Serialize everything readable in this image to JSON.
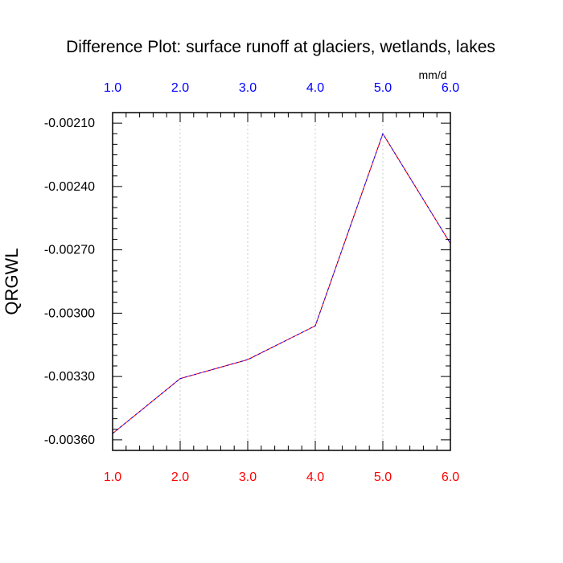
{
  "chart_data": {
    "type": "line",
    "title": "Difference Plot: surface runoff at glaciers, wetlands, lakes",
    "ylabel": "QRGWL",
    "units_label": "mm/d",
    "x": [
      1.0,
      2.0,
      3.0,
      4.0,
      5.0,
      6.0
    ],
    "series": [
      {
        "values": [
          -0.00357,
          -0.00331,
          -0.00322,
          -0.00306,
          -0.00215,
          -0.00267
        ]
      }
    ],
    "xlim": [
      1.0,
      6.0
    ],
    "ylim": [
      -0.00365,
      -0.00205
    ],
    "x_tick_labels": [
      "1.0",
      "2.0",
      "3.0",
      "4.0",
      "5.0",
      "6.0"
    ],
    "y_ticks": [
      -0.0021,
      -0.0024,
      -0.0027,
      -0.003,
      -0.0033,
      -0.0036
    ],
    "y_tick_labels": [
      "-0.00210",
      "-0.00240",
      "-0.00270",
      "-0.00300",
      "-0.00330",
      "-0.00360"
    ],
    "grid": "vertical dashed at x ticks",
    "colors": {
      "line_primary": "#ff0000",
      "line_secondary": "#0000ff",
      "x_bottom_labels": "#ff0000",
      "x_top_labels": "#0000ff",
      "grid": "#c8c8c8"
    }
  }
}
